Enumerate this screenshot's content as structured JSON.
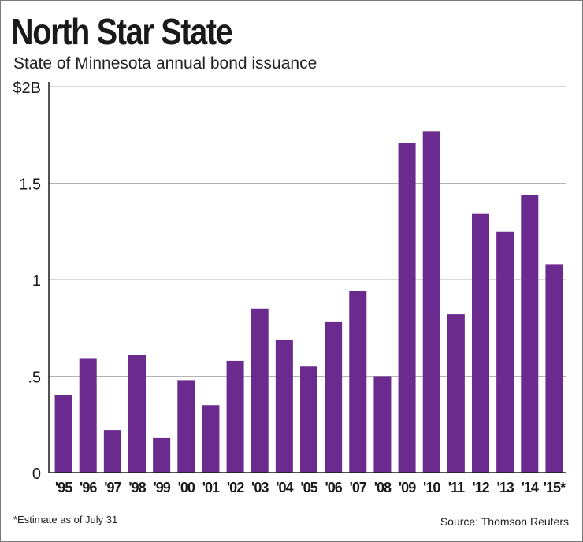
{
  "header": {
    "title": "North Star State",
    "subtitle": "State of Minnesota annual bond issuance"
  },
  "footer": {
    "footnote": "*Estimate as of July 31",
    "source": "Source: Thomson Reuters"
  },
  "colors": {
    "bar": "#6a2a8e",
    "grid": "#b3b3b3",
    "axis": "#1a1a1a"
  },
  "chart_data": {
    "type": "bar",
    "title": "North Star State",
    "subtitle": "State of Minnesota annual bond issuance",
    "xlabel": "",
    "ylabel": "",
    "unit": "$B",
    "ylim": [
      0,
      2
    ],
    "yticks": [
      0,
      0.5,
      1,
      1.5,
      2
    ],
    "ytick_labels": [
      "0",
      ".5",
      "1",
      "1.5",
      "$2B"
    ],
    "grid": "horizontal",
    "categories": [
      "'95",
      "'96",
      "'97",
      "'98",
      "'99",
      "'00",
      "'01",
      "'02",
      "'03",
      "'04",
      "'05",
      "'06",
      "'07",
      "'08",
      "'09",
      "'10",
      "'11",
      "'12",
      "'13",
      "'14",
      "'15*"
    ],
    "values": [
      0.4,
      0.59,
      0.22,
      0.61,
      0.18,
      0.48,
      0.35,
      0.58,
      0.85,
      0.69,
      0.55,
      0.78,
      0.94,
      0.5,
      1.71,
      1.77,
      0.82,
      1.34,
      1.25,
      1.44,
      1.08
    ]
  }
}
